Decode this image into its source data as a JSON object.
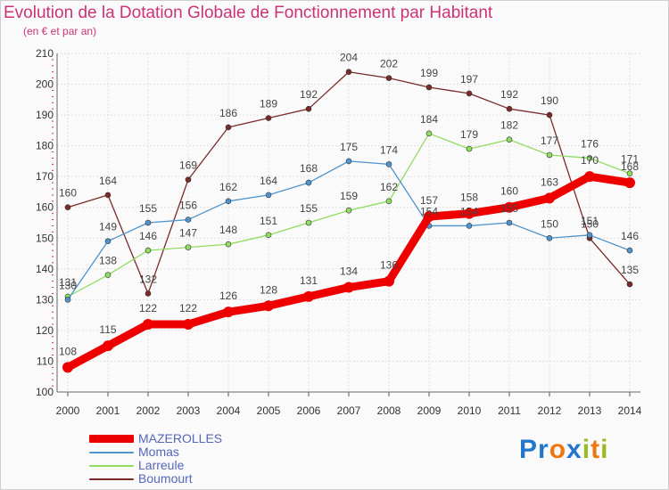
{
  "title": "Evolution de la Dotation Globale de Fonctionnement par Habitant",
  "subtitle": "(en € et par an)",
  "logo": {
    "letters": [
      "P",
      "r",
      "o",
      "x",
      "i",
      "t",
      "i"
    ],
    "colors": [
      "#2277cc",
      "#2277cc",
      "#ee7711",
      "#2277cc",
      "#99bb22",
      "#ee7711",
      "#99bb22"
    ]
  },
  "colors": {
    "MAZEROLLES": "#ee0000",
    "Momas": "#4f94cd",
    "Larreule": "#90dd60",
    "Boumourt": "#7b2a2a"
  },
  "chart_data": {
    "type": "line",
    "title": "Evolution de la Dotation Globale de Fonctionnement par Habitant",
    "subtitle": "(en € et par an)",
    "xlabel": "",
    "ylabel": "",
    "x": [
      "2000",
      "2001",
      "2002",
      "2003",
      "2004",
      "2005",
      "2006",
      "2007",
      "2008",
      "2009",
      "2010",
      "2011",
      "2012",
      "2013",
      "2014"
    ],
    "ylim": [
      100,
      210
    ],
    "yticks": [
      "100",
      "110",
      "120",
      "130",
      "140",
      "150",
      "160",
      "170",
      "180",
      "190",
      "200",
      "210"
    ],
    "grid": true,
    "legend_position": "bottom-left",
    "series": [
      {
        "name": "MAZEROLLES",
        "values": [
          108,
          115,
          122,
          122,
          126,
          128,
          131,
          134,
          136,
          157,
          158,
          160,
          163,
          170,
          168
        ]
      },
      {
        "name": "Momas",
        "values": [
          130,
          149,
          155,
          156,
          162,
          164,
          168,
          175,
          174,
          154,
          154,
          155,
          150,
          151,
          146
        ]
      },
      {
        "name": "Larreule",
        "values": [
          131,
          138,
          146,
          147,
          148,
          151,
          155,
          159,
          162,
          184,
          179,
          182,
          177,
          176,
          171
        ]
      },
      {
        "name": "Boumourt",
        "values": [
          160,
          164,
          132,
          169,
          186,
          189,
          192,
          204,
          202,
          199,
          197,
          192,
          190,
          150,
          135
        ]
      }
    ]
  }
}
